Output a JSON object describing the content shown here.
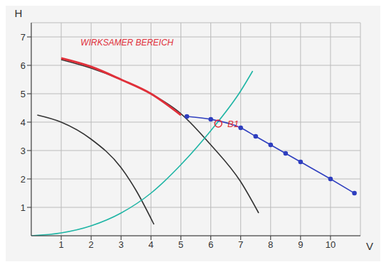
{
  "chart_data": {
    "type": "line",
    "x_label": "V",
    "y_label": "H",
    "xlim": [
      0,
      11
    ],
    "ylim": [
      0,
      7.5
    ],
    "xticks": [
      1,
      2,
      3,
      4,
      5,
      6,
      7,
      8,
      9,
      10
    ],
    "yticks": [
      1,
      2,
      3,
      4,
      5,
      6,
      7
    ],
    "grid": true,
    "series": [
      {
        "color": "#333333",
        "marker": "none",
        "x": [
          0.2,
          1,
          2,
          3,
          3.5,
          4.1
        ],
        "values": [
          4.25,
          4.0,
          3.4,
          2.4,
          1.6,
          0.4
        ]
      },
      {
        "color": "#333333",
        "marker": "none",
        "x": [
          1,
          2,
          3,
          4,
          5,
          6,
          7,
          7.6
        ],
        "values": [
          6.2,
          5.9,
          5.5,
          5.0,
          4.3,
          3.2,
          1.9,
          0.8
        ]
      },
      {
        "color": "#e0303a",
        "marker": "none",
        "x": [
          1,
          2,
          3,
          4,
          5
        ],
        "values": [
          6.25,
          5.95,
          5.5,
          5.0,
          4.25
        ]
      },
      {
        "color": "#1fb5a5",
        "marker": "none",
        "x": [
          0,
          1,
          2,
          3,
          4,
          5,
          6,
          7,
          7.4
        ],
        "values": [
          0,
          0.1,
          0.35,
          0.8,
          1.5,
          2.5,
          3.7,
          5.1,
          5.8
        ]
      },
      {
        "color": "#2f3fbf",
        "marker": "circle",
        "x": [
          5.2,
          6,
          7,
          7.5,
          8,
          8.5,
          9,
          10,
          10.8
        ],
        "values": [
          4.2,
          4.1,
          3.8,
          3.5,
          3.2,
          2.9,
          2.6,
          2.0,
          1.5
        ]
      }
    ],
    "annotations": [
      {
        "text": "WIRKSAMER BEREICH",
        "x": 3.2,
        "y": 6.8,
        "color": "#e0303a"
      },
      {
        "text": "B1",
        "x": 6.25,
        "y": 3.95,
        "color": "#e0303a",
        "marker": "circle"
      }
    ]
  }
}
